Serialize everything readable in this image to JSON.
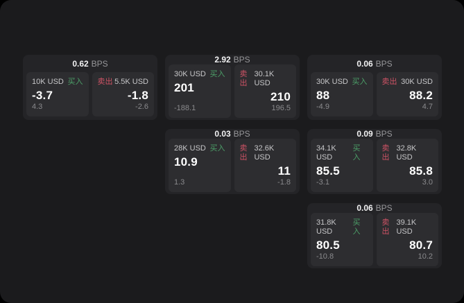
{
  "labels": {
    "bps_unit": "BPS",
    "buy": "买入",
    "sell": "卖出"
  },
  "colors": {
    "background": "#000000",
    "panel": "#1b1b1d",
    "card": "#242427",
    "tile": "#2d2d30",
    "buy": "#4c9f68",
    "sell": "#ce5365",
    "value_text": "#ffffff",
    "muted_text": "#8a8a8d"
  },
  "cards": [
    {
      "bps": "0.62",
      "buy": {
        "size": "10K USD",
        "value": "-3.7",
        "sub": "4.3"
      },
      "sell": {
        "size": "5.5K USD",
        "value": "-1.8",
        "sub": "-2.6"
      }
    },
    {
      "bps": "2.92",
      "buy": {
        "size": "30K USD",
        "value": "201",
        "sub": "-188.1"
      },
      "sell": {
        "size": "30.1K USD",
        "value": "210",
        "sub": "196.5"
      }
    },
    {
      "bps": "0.06",
      "buy": {
        "size": "30K USD",
        "value": "88",
        "sub": "-4.9"
      },
      "sell": {
        "size": "30K USD",
        "value": "88.2",
        "sub": "4.7"
      }
    },
    {
      "bps": "0.03",
      "buy": {
        "size": "28K USD",
        "value": "10.9",
        "sub": "1.3"
      },
      "sell": {
        "size": "32.6K USD",
        "value": "11",
        "sub": "-1.8"
      }
    },
    {
      "bps": "0.09",
      "buy": {
        "size": "34.1K USD",
        "value": "85.5",
        "sub": "-3.1"
      },
      "sell": {
        "size": "32.8K USD",
        "value": "85.8",
        "sub": "3.0"
      }
    },
    {
      "bps": "0.06",
      "buy": {
        "size": "31.8K USD",
        "value": "80.5",
        "sub": "-10.8"
      },
      "sell": {
        "size": "39.1K USD",
        "value": "80.7",
        "sub": "10.2"
      }
    }
  ]
}
